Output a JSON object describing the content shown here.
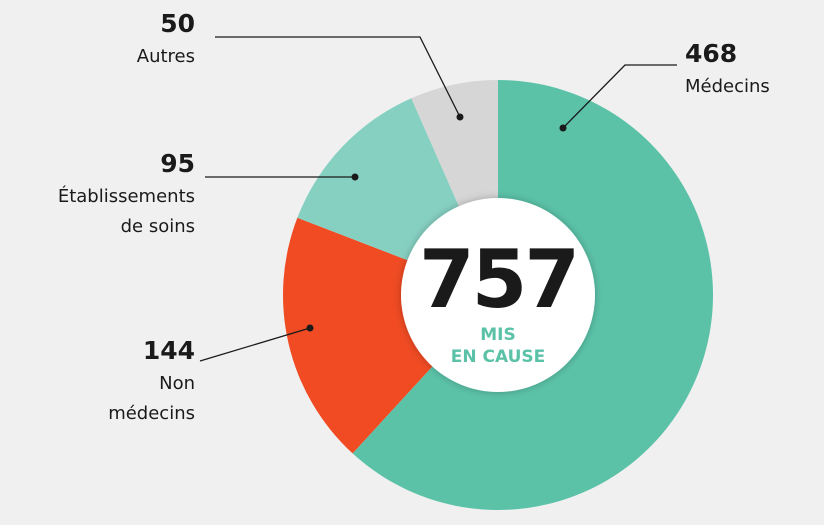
{
  "chart_data": {
    "type": "donut",
    "categories": [
      "Médecins",
      "Non médecins",
      "Établissements de soins",
      "Autres"
    ],
    "values": [
      468,
      144,
      95,
      50
    ],
    "colors": [
      "#5bc2a8",
      "#f04b23",
      "#86d0c2",
      "#d6d6d6"
    ],
    "total": 757,
    "center_label": "MIS EN CAUSE"
  }
}
